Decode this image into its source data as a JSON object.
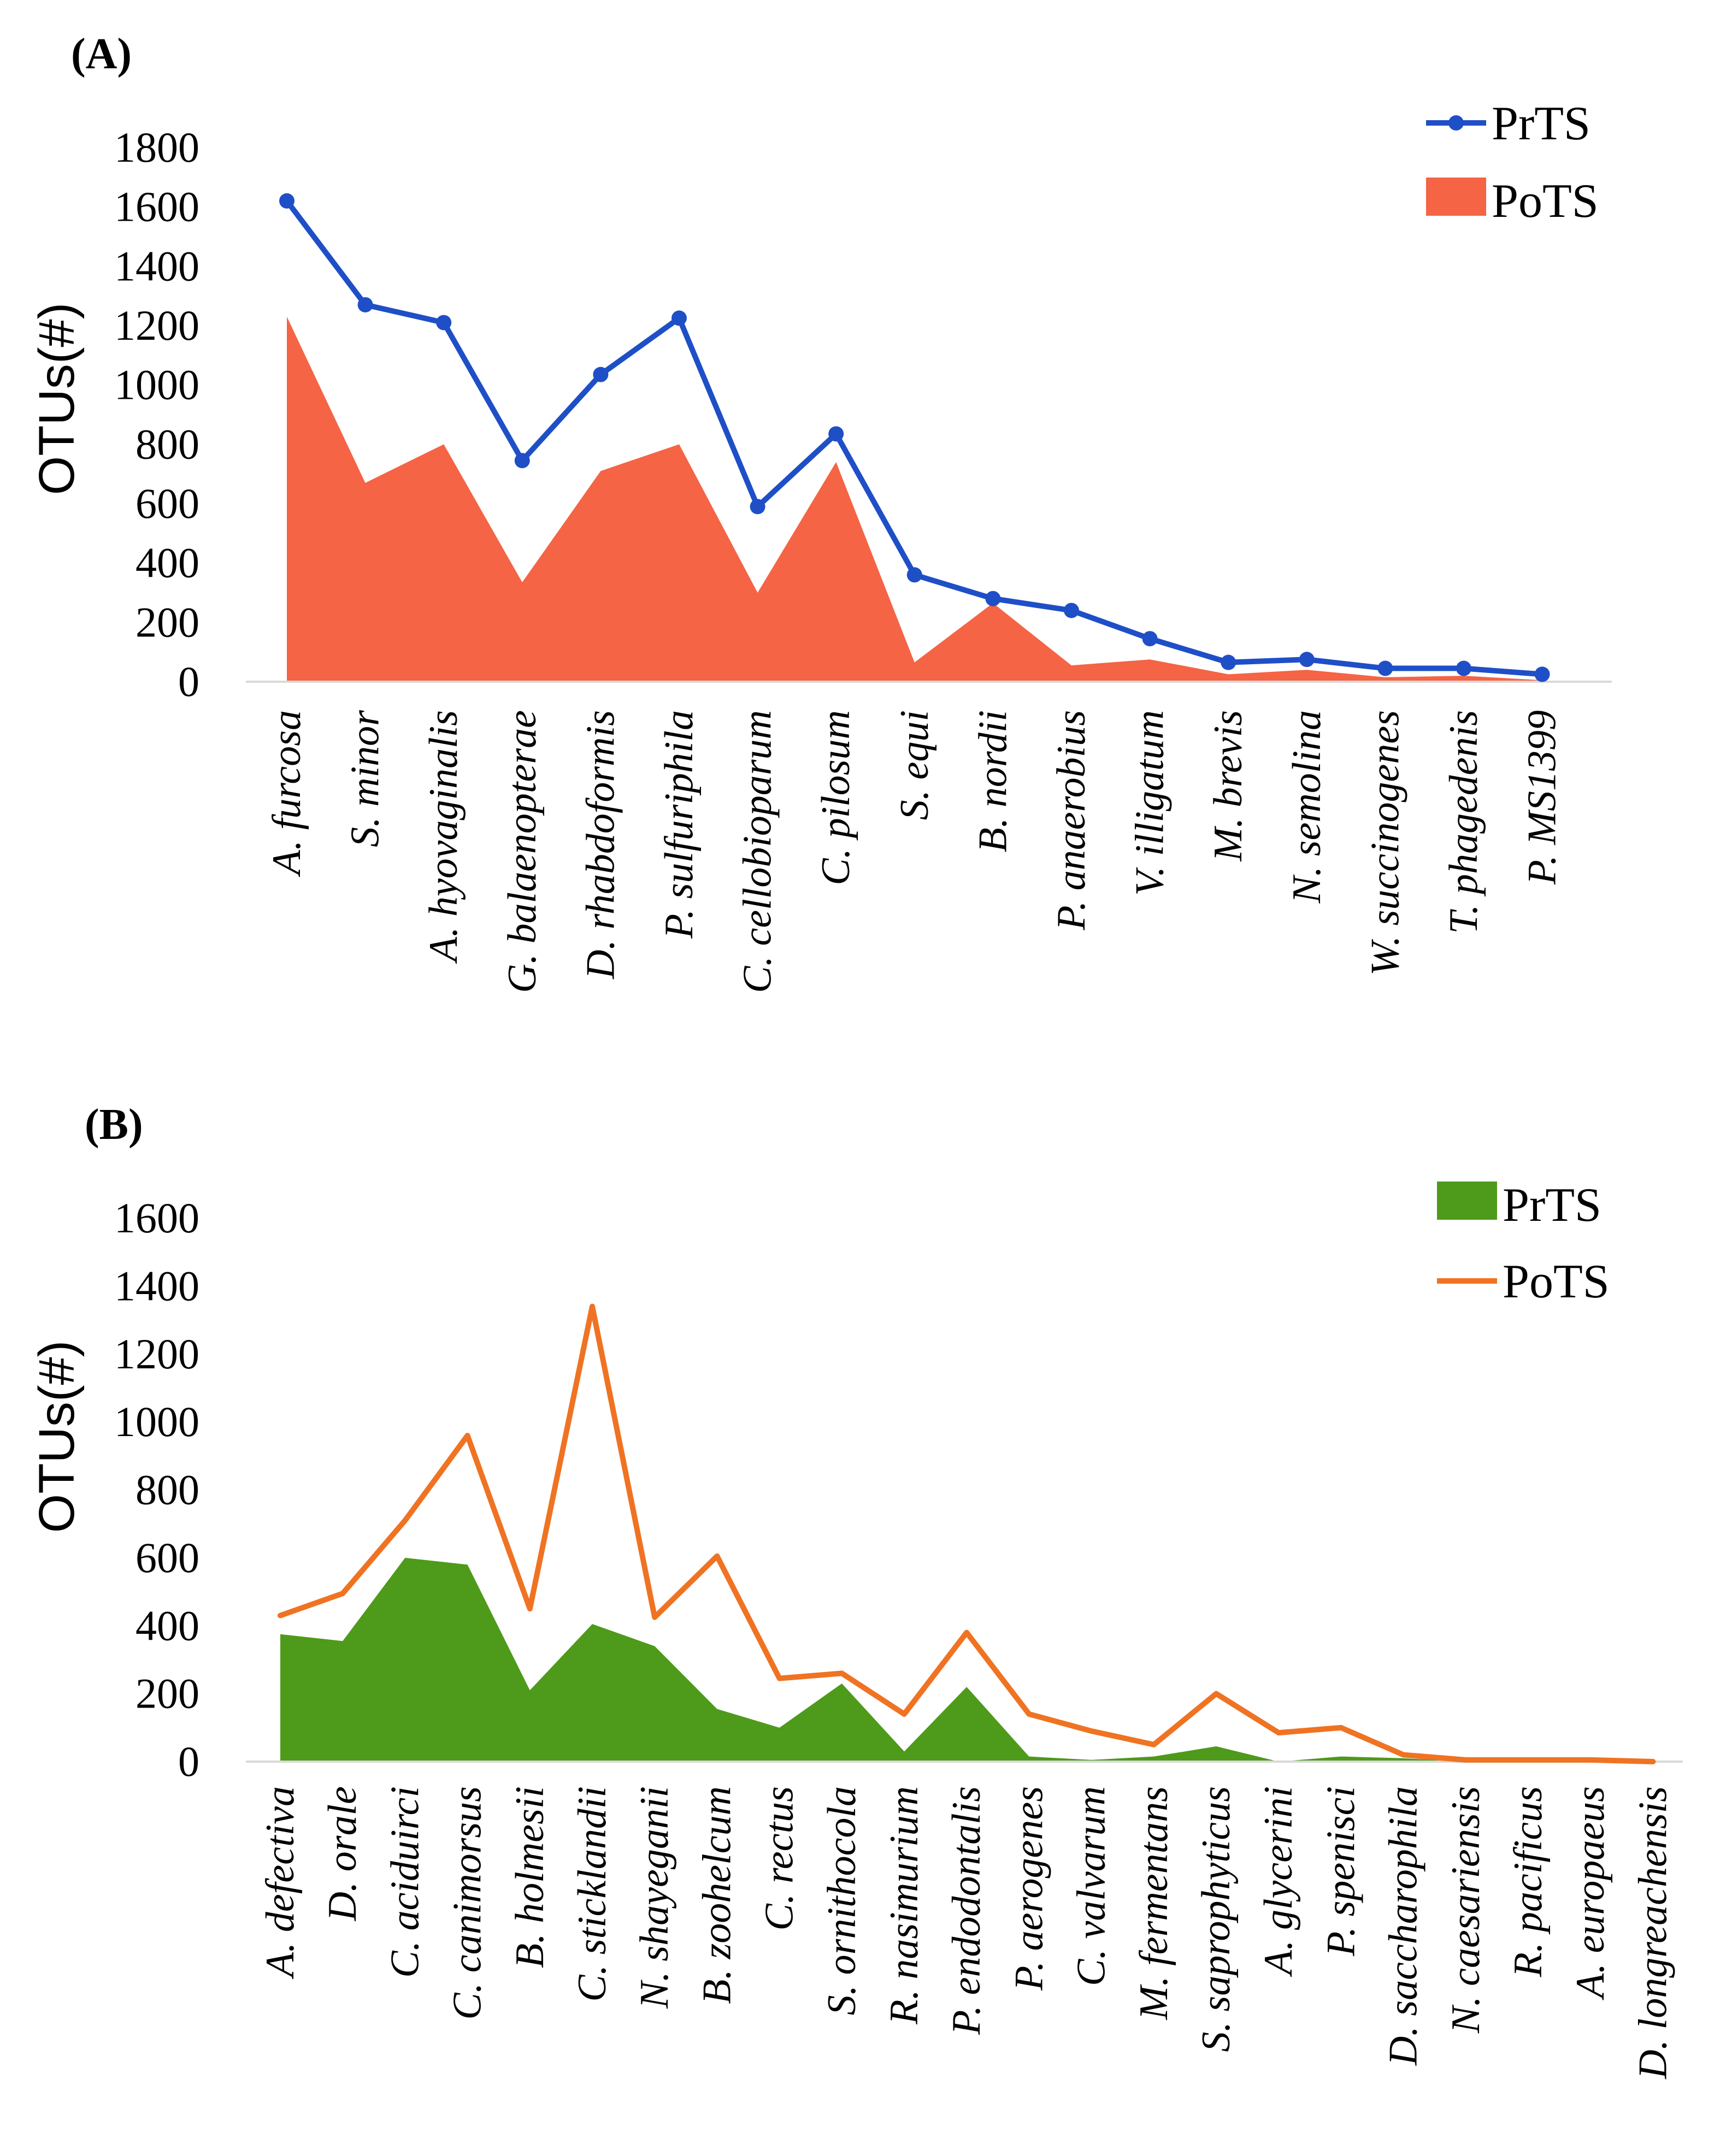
{
  "chart_data": [
    {
      "panel": "(A)",
      "type": "line+area",
      "ylabel": "OTUs(#)",
      "ylim": [
        0,
        1800
      ],
      "yticks": [
        0,
        200,
        400,
        600,
        800,
        1000,
        1200,
        1400,
        1600,
        1800
      ],
      "categories": [
        "A. furcosa",
        "S. minor",
        "A. hyovaginalis",
        "G. balaenopterae",
        "D. rhabdoformis",
        "P. sulfuriphila",
        "C. cellobioparum",
        "C. pilosum",
        "S. equi",
        "B. nordii",
        "P. anaerobius",
        "V. illigatum",
        "M. brevis",
        "N. semolina",
        "W. succinogenes",
        "T. phagedenis",
        "P. MS1399"
      ],
      "series": [
        {
          "name": "PrTS",
          "style": "line",
          "markers": true,
          "color": "#1f4fc7",
          "values": [
            1620,
            1270,
            1210,
            745,
            1035,
            1225,
            590,
            835,
            360,
            280,
            240,
            145,
            65,
            75,
            45,
            45,
            25
          ]
        },
        {
          "name": "PoTS",
          "style": "area",
          "color": "#f46445",
          "values": [
            1230,
            670,
            800,
            335,
            710,
            800,
            300,
            740,
            65,
            265,
            55,
            75,
            25,
            40,
            15,
            20,
            5
          ]
        }
      ],
      "legend_position": "top-right"
    },
    {
      "panel": "(B)",
      "type": "line+area",
      "ylabel": "OTUs(#)",
      "ylim": [
        0,
        1600
      ],
      "yticks": [
        0,
        200,
        400,
        600,
        800,
        1000,
        1200,
        1400,
        1600
      ],
      "categories": [
        "A. defectiva",
        "D. orale",
        "C. aciduirci",
        "C. canimorsus",
        "B. holmesii",
        "C. sticklandii",
        "N. shayeganii",
        "B. zoohelcum",
        "C. rectus",
        "S. ornithocola",
        "R. nasimurium",
        "P. endodontalis",
        "P. aerogenes",
        "C. valvarum",
        "M. fermentans",
        "S. saprophyticus",
        "A. glycerini",
        "P. spenisci",
        "D. saccharophila",
        "N. caesariensis",
        "R. pacificus",
        "A. europaeus",
        "D. longreachensis"
      ],
      "series": [
        {
          "name": "PrTS",
          "style": "area",
          "color": "#4e9a1a",
          "values": [
            375,
            355,
            600,
            580,
            210,
            405,
            340,
            155,
            100,
            230,
            30,
            220,
            15,
            5,
            15,
            45,
            0,
            15,
            10,
            0,
            0,
            0,
            0
          ]
        },
        {
          "name": "PoTS",
          "style": "line",
          "markers": false,
          "color": "#ef7322",
          "values": [
            430,
            495,
            710,
            960,
            450,
            1340,
            425,
            605,
            245,
            260,
            140,
            380,
            140,
            90,
            50,
            200,
            85,
            100,
            20,
            5,
            5,
            5,
            0
          ]
        }
      ],
      "legend_position": "top-right"
    }
  ]
}
